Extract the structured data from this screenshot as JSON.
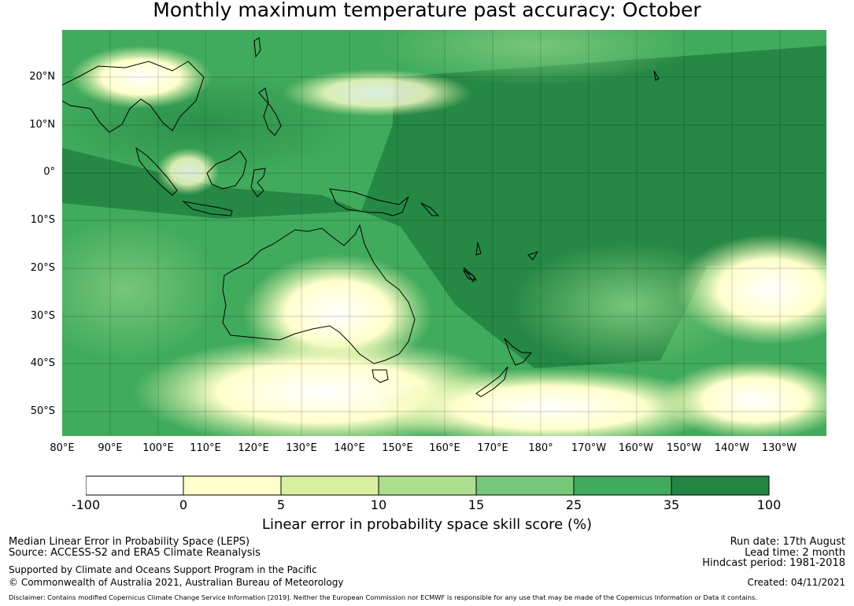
{
  "title": "Monthly maximum temperature past accuracy: October",
  "map": {
    "lat_labels": [
      "20°N",
      "10°N",
      "0°",
      "10°S",
      "20°S",
      "30°S",
      "40°S",
      "50°S"
    ],
    "lon_labels": [
      "80°E",
      "90°E",
      "100°E",
      "110°E",
      "120°E",
      "130°E",
      "140°E",
      "150°E",
      "160°E",
      "170°E",
      "180°",
      "170°W",
      "160°W",
      "150°W",
      "140°W",
      "130°W"
    ],
    "extent": {
      "lon": [
        80,
        240
      ],
      "lat": [
        -55,
        30
      ]
    }
  },
  "colorbar": {
    "ticks": [
      "-100",
      "0",
      "5",
      "10",
      "15",
      "25",
      "35",
      "100"
    ],
    "colors": [
      "#ffffff",
      "#ffffcc",
      "#d9f0a3",
      "#addd8e",
      "#78c679",
      "#41ab5d",
      "#238443"
    ],
    "label": "Linear error in probability space skill score (%)"
  },
  "footer": {
    "left_line1": "Median Linear Error in Probability Space (LEPS)",
    "left_line2": "Source: ACCESS-S2 and ERA5 Climate Reanalysis",
    "left_line3": "Supported by Climate and Oceans Support Program in the Pacific",
    "left_line4": "© Commonwealth of Australia 2021, Australian Bureau of Meteorology",
    "right_line1": "Run date: 17th August",
    "right_line2": "Lead time: 2 month",
    "right_line3": "Hindcast period: 1981-2018",
    "right_line4": "Created: 04/11/2021",
    "disclaimer": "Disclaimer: Contains modified Copernicus Climate Change Service Information [2019]. Neither the European Commission nor ECMWF is responsible for any use that may be made of the Copernicus Information or Data it contains."
  }
}
